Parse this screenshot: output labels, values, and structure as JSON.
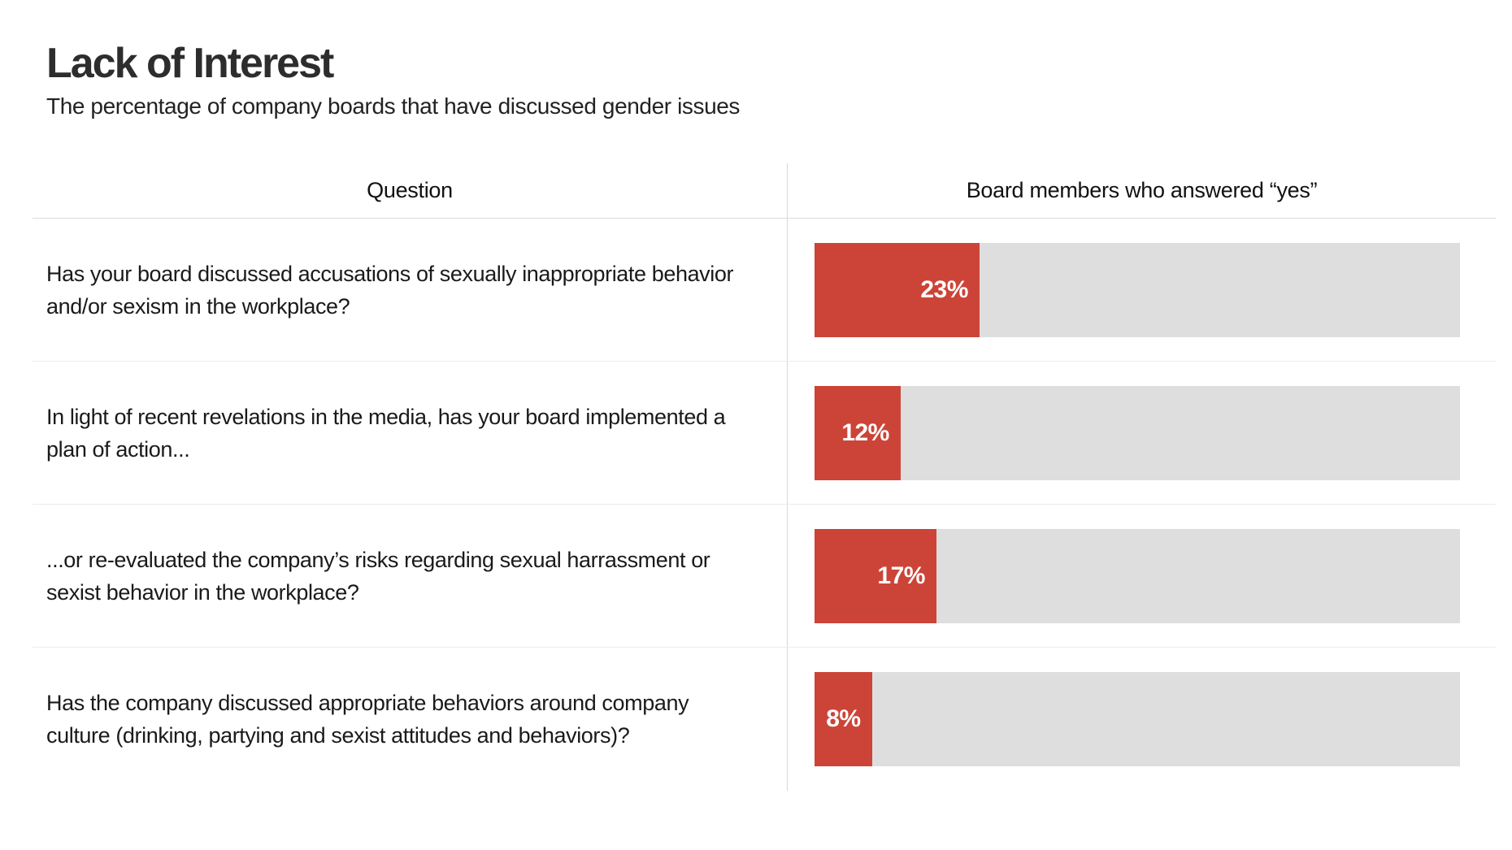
{
  "header": {
    "title": "Lack of Interest",
    "subtitle": "The percentage of company boards that have discussed gender issues"
  },
  "table": {
    "columns": {
      "question": "Question",
      "answer": "Board members who answered “yes”"
    },
    "rows": [
      {
        "question": "Has your board discussed accusations of sexually inappropriate behavior and/or sexism in the workplace?",
        "value": 23,
        "label": "23%"
      },
      {
        "question": "In light of recent revelations in the media, has your board implemented a plan of action...",
        "value": 12,
        "label": "12%"
      },
      {
        "question": "...or re-evaluated the company’s risks regarding sexual harrassment or sexist behavior in the workplace?",
        "value": 17,
        "label": "17%"
      },
      {
        "question": "Has the company discussed appropriate behaviors around company culture (drinking, partying and sexist attitudes and behaviors)?",
        "value": 8,
        "label": "8%"
      }
    ]
  },
  "chart_data": {
    "type": "bar",
    "orientation": "horizontal",
    "title": "Lack of Interest",
    "subtitle": "The percentage of company boards that have discussed gender issues",
    "series_label": "Board members who answered “yes”",
    "categories": [
      "Has your board discussed accusations of sexually inappropriate behavior and/or sexism in the workplace?",
      "In light of recent revelations in the media, has your board implemented a plan of action...",
      "...or re-evaluated the company’s risks regarding sexual harrassment or sexist behavior in the workplace?",
      "Has the company discussed appropriate behaviors around company culture (drinking, partying and sexist attitudes and behaviors)?"
    ],
    "values": [
      23,
      12,
      17,
      8
    ],
    "value_labels": [
      "23%",
      "12%",
      "17%",
      "8%"
    ],
    "xlim": [
      0,
      90
    ],
    "grid": false,
    "legend": false,
    "colors": {
      "bar_fill": "#cc4437",
      "bar_track": "#dedede",
      "value_label": "#ffffff",
      "title_text": "#2d2d2d",
      "body_text": "#1a1a1a",
      "divider": "#ececec"
    }
  }
}
